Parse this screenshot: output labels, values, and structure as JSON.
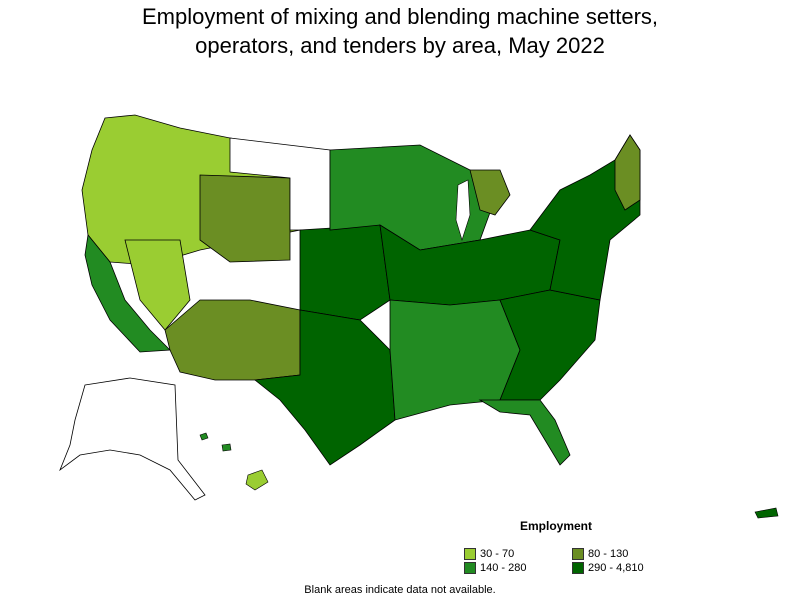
{
  "title": {
    "line1": "Employment of mixing and blending machine setters,",
    "line2": "operators, and tenders by area, May 2022"
  },
  "legend": {
    "title": "Employment",
    "items": [
      {
        "label": "30 - 70",
        "color": "#9acd32"
      },
      {
        "label": "80 - 130",
        "color": "#6b8e23"
      },
      {
        "label": "140 - 280",
        "color": "#228b22"
      },
      {
        "label": "290 - 4,810",
        "color": "#006400"
      }
    ]
  },
  "footnote": "Blank areas indicate data not available.",
  "colors": {
    "border": "#000000",
    "no_data": "#ffffff"
  }
}
